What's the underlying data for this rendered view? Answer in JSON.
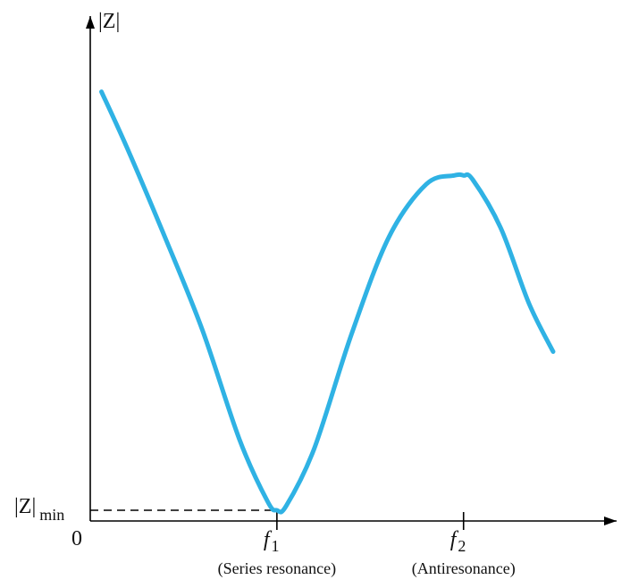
{
  "chart_data": {
    "type": "line",
    "title": "",
    "ylabel": "|Z|",
    "origin_label": "0",
    "ymin_label": {
      "main": "|Z|",
      "sub": "min"
    },
    "x_ticks": [
      {
        "x": 1,
        "symbol": "f",
        "sub": "1",
        "caption": "(Series resonance)"
      },
      {
        "x": 2,
        "symbol": "f",
        "sub": "2",
        "caption": "(Antiresonance)"
      }
    ],
    "xlim": [
      0,
      2.82
    ],
    "ylim": [
      0,
      1.0
    ],
    "series": [
      {
        "color": "#2fb2e4",
        "x": [
          0.06,
          0.2,
          0.4,
          0.6,
          0.8,
          0.95,
          1.0,
          1.05,
          1.2,
          1.4,
          1.6,
          1.8,
          1.95,
          2.0,
          2.05,
          2.2,
          2.35,
          2.48
        ],
        "y": [
          0.95,
          0.82,
          0.62,
          0.41,
          0.16,
          0.02,
          0.0,
          0.01,
          0.14,
          0.4,
          0.62,
          0.74,
          0.76,
          0.76,
          0.75,
          0.64,
          0.47,
          0.36
        ]
      }
    ],
    "min_guide": {
      "x": 1,
      "y": 0
    }
  }
}
